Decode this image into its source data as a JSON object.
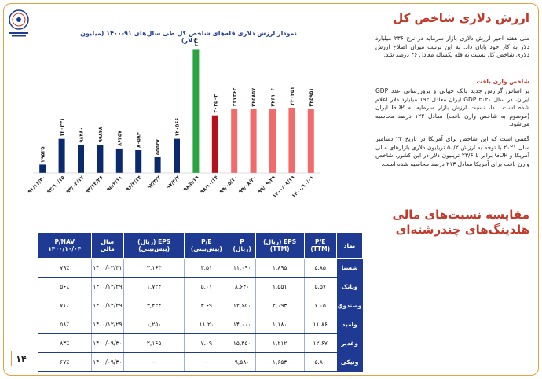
{
  "page": {
    "title": "ارزش دلاری شاخص کل",
    "section2_title_line1": "مقایسه نسبت‌های مالی",
    "section2_title_line2": "هلدینگ‌های چندرشته‌ای",
    "page_number": "۱۴"
  },
  "text": {
    "para1": "طی هفته اخیر ارزش دلاری بازار سرمایه در نرخ ۲۳۶ میلیارد دلار به کار خود پایان داد. به این ترتیب میزان اصلاح ارزش دلاری شاخص کل نسبت به قله یکساله معادل ۴۶ درصد شد.",
    "subhead": "شاخص وارن بافت",
    "para2": "بر اساس گزارش جدید بانک جهانی و بروزرسانی عدد GDP ایران، در سال ۲۰۲۰ GDP ایران معادل ۱۹۲ میلیارد دلار اعلام شده است. لذا، نسبت ارزش بازار سرمایه به GDP ایران (موسوم به شاخص وارن بافت) معادل ۱۲۲ درصد محاسبه می‌شود.",
    "para3": "گفتنی است که این شاخص برای آمریکا در تاریخ ۲۴ دسامبر سال ۲۰۲۱ با توجه به ارزش ۵۰/۲ تریلیون دلاری بازارهای مالی آمریکا و GDP برابر با ۲۳/۶ تریلیون دلار در این کشور، شاخص وارن بافت برای آمریکا معادل ۲۱۳ درصد محاسبه شده است."
  },
  "chart_data": {
    "type": "bar",
    "title": "نمودار ارزش دلاری قله‌های شاخص کل طی سال‌های ۹۱-۱۴۰۰ (میلیون دلار)",
    "categories": [
      "۹۱/۱۱/۳۰",
      "۹۲/۱۰/۱۵",
      "۹۳/۰۳/۱۷",
      "۹۴/۱۲/۲۶",
      "۹۵/۲/۱۱",
      "۹۶/۲/۱۴",
      "۹۷/۳/۷",
      "۹۷/۴/۴",
      "۹۸/۵/۱۹",
      "۹۸/۱۰/۱۴",
      "۹۹/۰۵/۱۰",
      "۹۹/۰۸/۲۰",
      "۹۹/۰۹/۲۹",
      "۱۴۰۰/۰۸/۱۹",
      "۱۴۰۰/۱۰/۰۱"
    ],
    "values": [
      29535,
      120231,
      98480,
      99848,
      86357,
      80584,
      55537,
      120566,
      437750,
      203503,
      227262,
      225857,
      226106,
      230451,
      225951
    ],
    "labels": [
      "۲۹۵۳۵",
      "۱۲۰۲۳۱",
      "۹۸۴۸۰",
      "۹۹۸۴۸",
      "۸۶۳۵۷",
      "۸۰۵۸۴",
      "۵۵۵۳۷",
      "۱۲۰۵۶۶",
      "۴۳۷۷۵۰",
      "۲۰۳۵۰۳",
      "۲۲۷۲۶۲",
      "۲۲۵۸۵۷",
      "۲۲۶۱۰۶",
      "۲۳۰۴۵۱",
      "۲۲۵۹۵۱"
    ],
    "colors": [
      "#0b2a6e",
      "#0b2a6e",
      "#0b2a6e",
      "#0b2a6e",
      "#0b2a6e",
      "#0b2a6e",
      "#0b2a6e",
      "#0b2a6e",
      "#2ca342",
      "#b3121c",
      "#f26b6b",
      "#f26b6b",
      "#f26b6b",
      "#f26b6b",
      "#f26b6b"
    ],
    "ylim": [
      0,
      450000
    ]
  },
  "table": {
    "headers": [
      "نماد",
      "P/E (TTM)",
      "EPS (ریال) (TTM)",
      "P (ریال)",
      "P/E (پیش‌بینی)",
      "EPS (ریال) (پیش‌بینی)",
      "سال مالی",
      "P/NAV ۱۴۰۰/۱۰/۰۴"
    ],
    "rows": [
      [
        "شستا",
        "۵.۸۵",
        "۱,۸۹۵",
        "۱۱,۰۹۰",
        "۳.۵۱",
        "۳,۱۶۳",
        "۱۴۰۰/۰۳/۳۱",
        "۷۹٪"
      ],
      [
        "وبانک",
        "۵.۵۷",
        "۱,۵۵۱",
        "۸,۶۴۰",
        "۵.۰۱",
        "۱,۷۲۴",
        "۱۴۰۰/۱۲/۲۹",
        "۵۶٪"
      ],
      [
        "وصندوق",
        "۶.۰۵",
        "۲,۰۹۳",
        "۱۲,۶۵۰",
        "۳.۶۹",
        "۳,۴۲۴",
        "۱۴۰۰/۱۲/۲۹",
        "۷۱٪"
      ],
      [
        "وامید",
        "۱۱.۸۶",
        "۱,۱۸۰",
        "۱۴,۰۰۰",
        "۱۱.۲۰",
        "۱,۲۵۰",
        "۱۴۰۰/۱۲/۲۹",
        "۵۸٪"
      ],
      [
        "وغدیر",
        "۱۲.۶۷",
        "۱,۲۱۲",
        "۱۵,۳۵۰",
        "۷.۰۹",
        "۲,۱۶۵",
        "۱۴۰۰/۰۹/۳۰",
        "۸۳٪"
      ],
      [
        "ونیکی",
        "۵.۸۰",
        "۱,۶۵۳",
        "۹,۵۸۰",
        "–",
        "–",
        "۱۴۰۰/۰۹/۳۰",
        "۶۷٪"
      ]
    ]
  }
}
